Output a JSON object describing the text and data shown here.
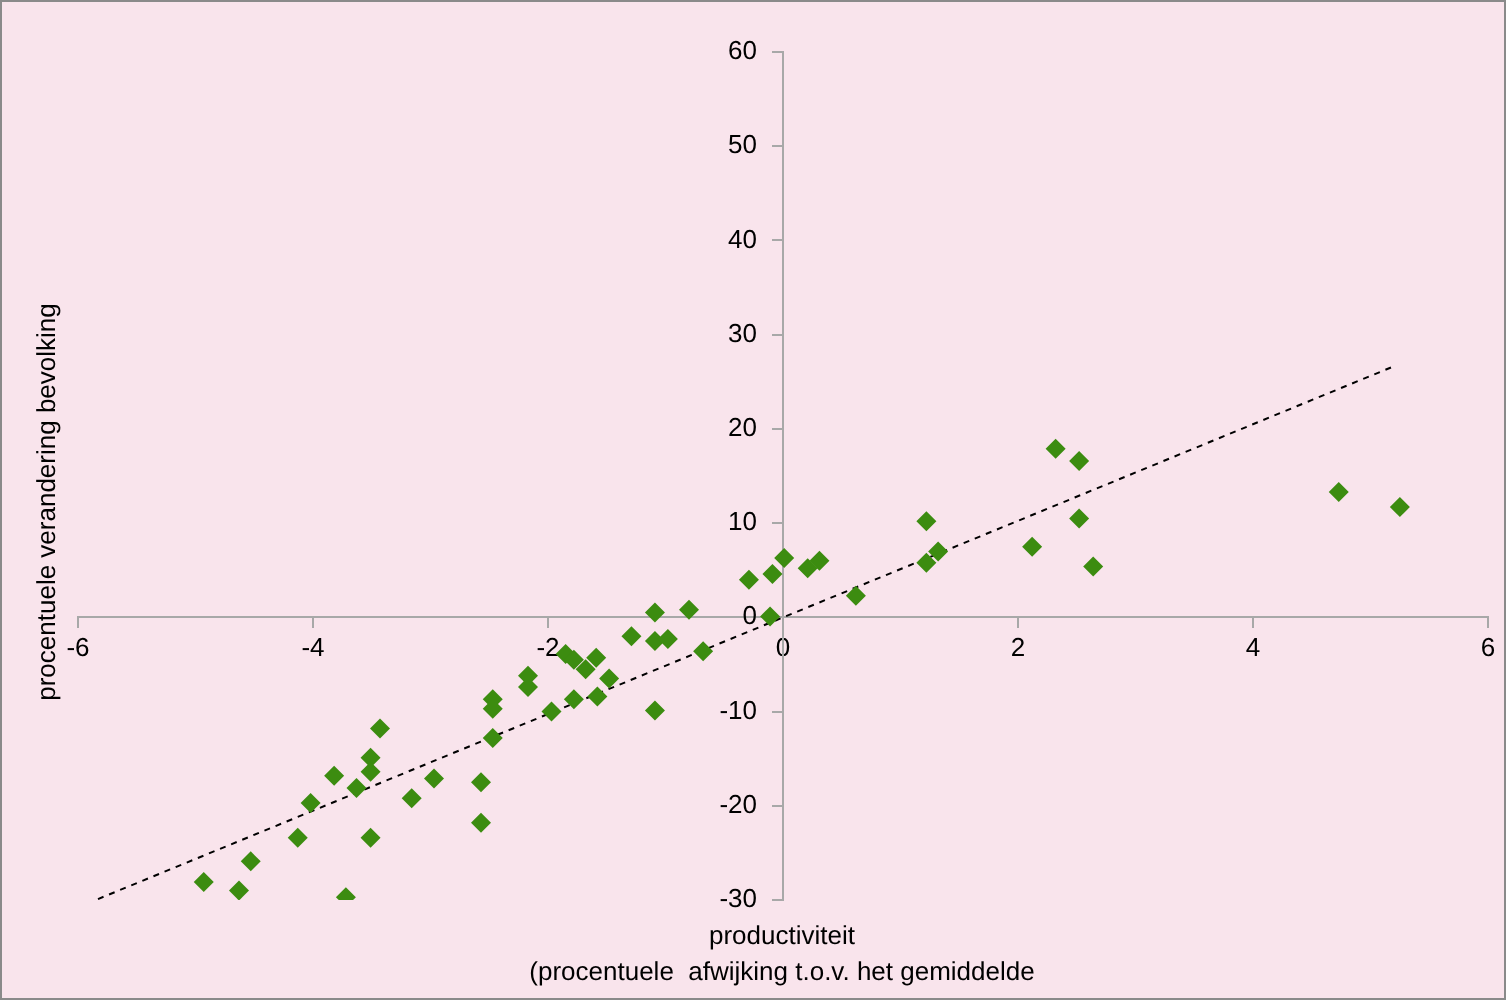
{
  "chart_data": {
    "type": "scatter",
    "xlabel": "productiviteit\n(procentuele  afwijking t.o.v. het gemiddelde",
    "ylabel": "procentuele verandering bevolking",
    "xlim": [
      -6,
      6
    ],
    "xticks": [
      -6,
      -4,
      -2,
      0,
      2,
      4,
      6
    ],
    "ylim": [
      -30,
      60
    ],
    "yticks": [
      -30,
      -20,
      -10,
      0,
      10,
      20,
      30,
      40,
      50,
      60
    ],
    "grid": false,
    "legend": false,
    "marker": "diamond",
    "series": [
      {
        "type": "scatter",
        "color": "#3c8c10",
        "x": [
          -3.43,
          -3.51,
          -3.51,
          -3.82,
          -3.63,
          -4.02,
          -4.13,
          -3.51,
          -4.53,
          -4.93,
          -4.63,
          -3.72,
          -1.09,
          -0.8,
          -0.11,
          -1.29,
          -1.09,
          -0.98,
          -0.68,
          -1.85,
          -1.78,
          -1.68,
          -1.59,
          -1.48,
          -2.17,
          -2.17,
          -2.47,
          -2.47,
          -1.97,
          -1.78,
          -1.58,
          -1.09,
          -2.47,
          -2.97,
          -3.16,
          -2.57,
          -2.57,
          -0.29,
          -0.09,
          0.01,
          0.21,
          0.31,
          0.62,
          1.22,
          1.22,
          1.32,
          2.12,
          2.32,
          2.52,
          2.52,
          2.64,
          4.73,
          5.25
        ],
        "values": [
          -11.8,
          -14.9,
          -16.4,
          -16.8,
          -18.1,
          -19.7,
          -23.4,
          -23.4,
          -25.9,
          -28.1,
          -29.0,
          -29.7,
          0.5,
          0.8,
          0.1,
          -2.0,
          -2.5,
          -2.3,
          -3.6,
          -3.9,
          -4.5,
          -5.5,
          -4.3,
          -6.5,
          -6.2,
          -7.4,
          -8.7,
          -9.7,
          -10.0,
          -8.7,
          -8.4,
          -9.9,
          -12.8,
          -17.1,
          -19.2,
          -17.5,
          -21.8,
          4.0,
          4.6,
          6.3,
          5.2,
          6.0,
          2.3,
          10.2,
          5.8,
          7.0,
          7.5,
          17.9,
          16.6,
          10.5,
          5.4,
          13.3,
          11.7
        ]
      },
      {
        "type": "line",
        "color": "#000000",
        "x": [
          -5.83,
          5.21
        ],
        "values": [
          -29.9,
          26.7
        ],
        "line_style": "dashed",
        "marker": "none"
      }
    ]
  }
}
